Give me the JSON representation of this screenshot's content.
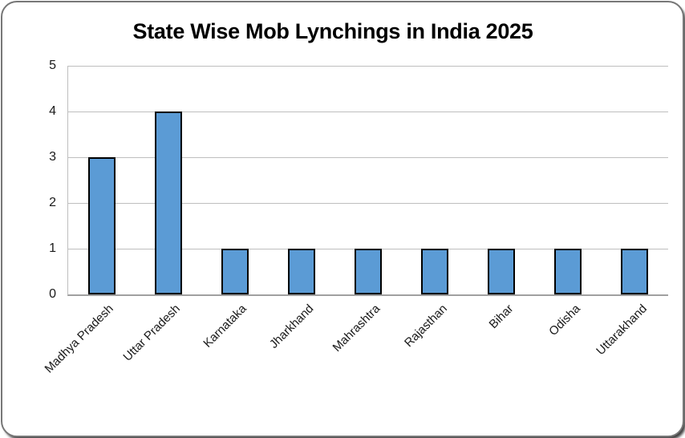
{
  "window": {
    "background": "#ffffff",
    "card_border_color": "#777777"
  },
  "chart_data": {
    "type": "bar",
    "title": "State Wise Mob Lynchings in India 2025",
    "categories": [
      "Madhya Pradesh",
      "Uttar Pradesh",
      "Karnataka",
      "Jharkhand",
      "Mahrashtra",
      "Rajasthan",
      "Bihar",
      "Odisha",
      "Uttarakhand"
    ],
    "values": [
      3,
      4,
      1,
      1,
      1,
      1,
      1,
      1,
      1
    ],
    "xlabel": "",
    "ylabel": "",
    "ylim": [
      0,
      5
    ],
    "yticks": [
      0,
      1,
      2,
      3,
      4,
      5
    ],
    "grid": true,
    "legend": false,
    "x_label_rotation_deg": -45,
    "bar_color": "#5B9BD5",
    "bar_border_color": "#000000",
    "gridline_color": "#BFBFBF",
    "axis_color": "#A0A0A0",
    "label_color": "#1A1A1A",
    "title_color": "#000000"
  }
}
